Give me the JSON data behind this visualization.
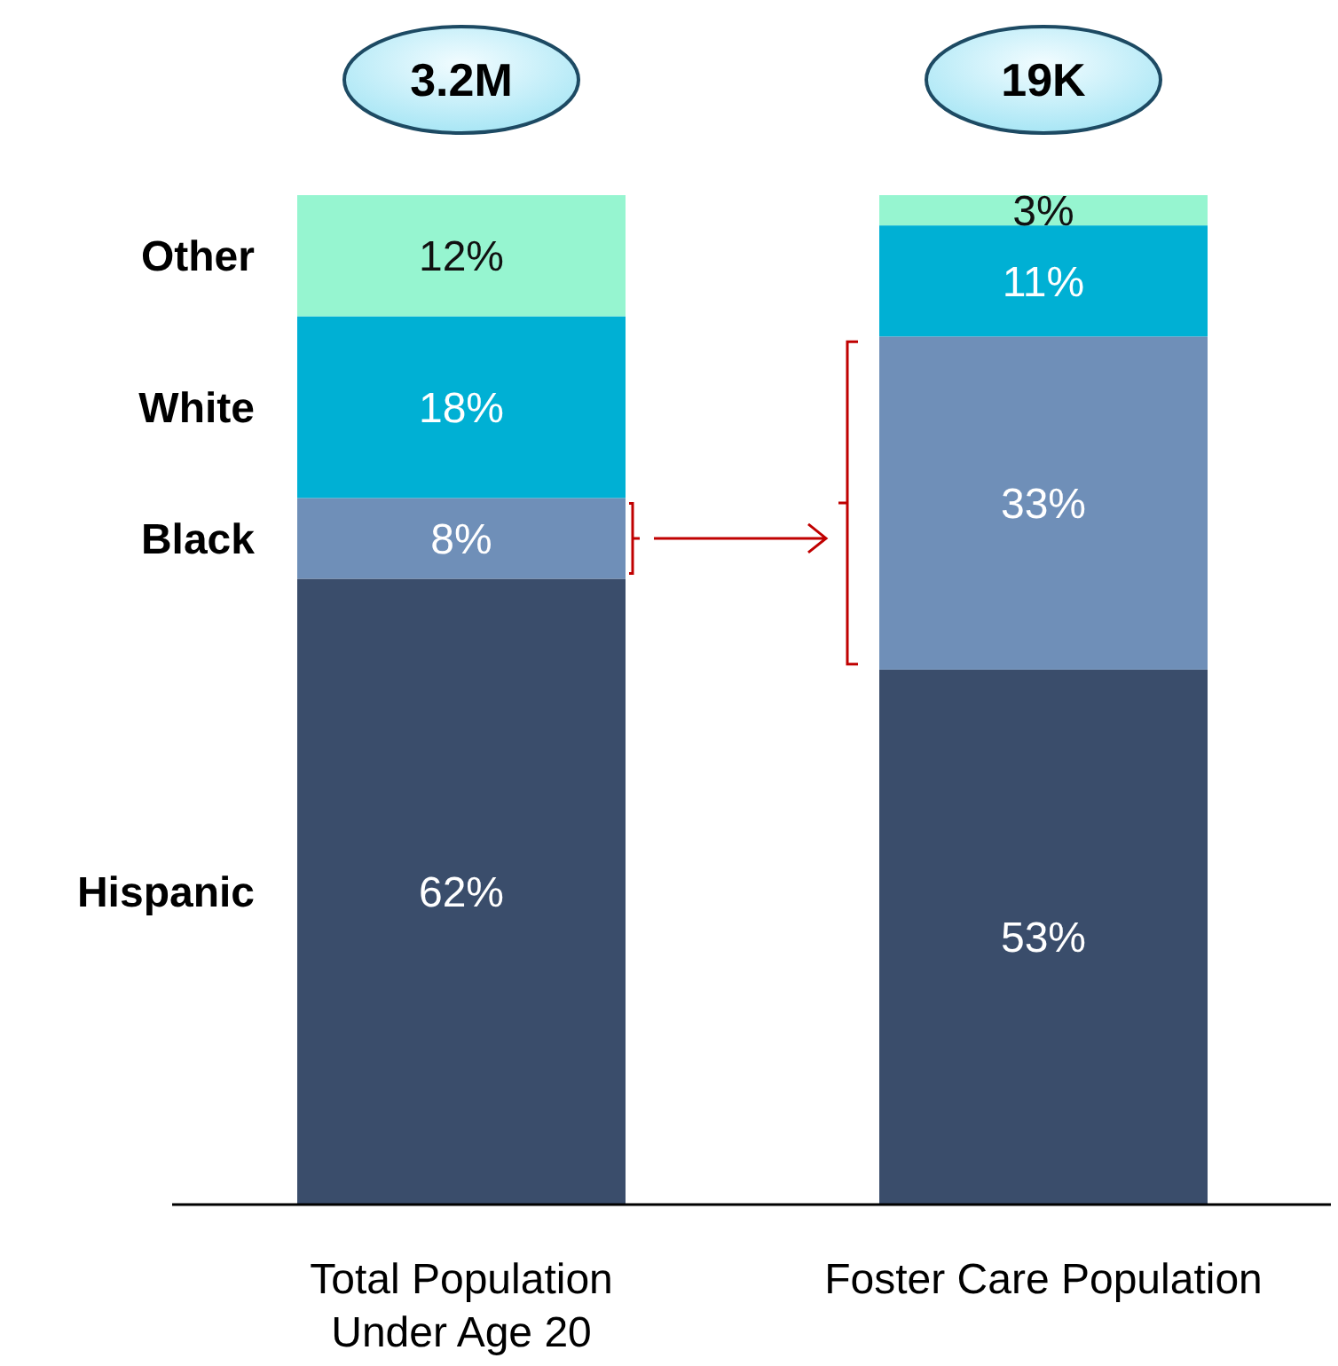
{
  "chart_data": {
    "type": "bar",
    "stacked": true,
    "categories": [
      "Total Population Under Age 20",
      "Foster Care Population"
    ],
    "series": [
      {
        "name": "Hispanic",
        "color": "#3a4d6b",
        "values": [
          62,
          53
        ],
        "value_labels": [
          "62%",
          "53%"
        ]
      },
      {
        "name": "Black",
        "color": "#6f8fb8",
        "values": [
          8,
          33
        ],
        "value_labels": [
          "8%",
          "33%"
        ]
      },
      {
        "name": "White",
        "color": "#00b0d4",
        "values": [
          18,
          11
        ],
        "value_labels": [
          "18%",
          "11%"
        ]
      },
      {
        "name": "Other",
        "color": "#96f5d0",
        "values": [
          12,
          3
        ],
        "value_labels": [
          "12%",
          "3%"
        ]
      }
    ],
    "annotations": [
      "3.2M",
      "19K"
    ],
    "ylim": [
      0,
      100
    ],
    "tick_labels": "x"
  }
}
